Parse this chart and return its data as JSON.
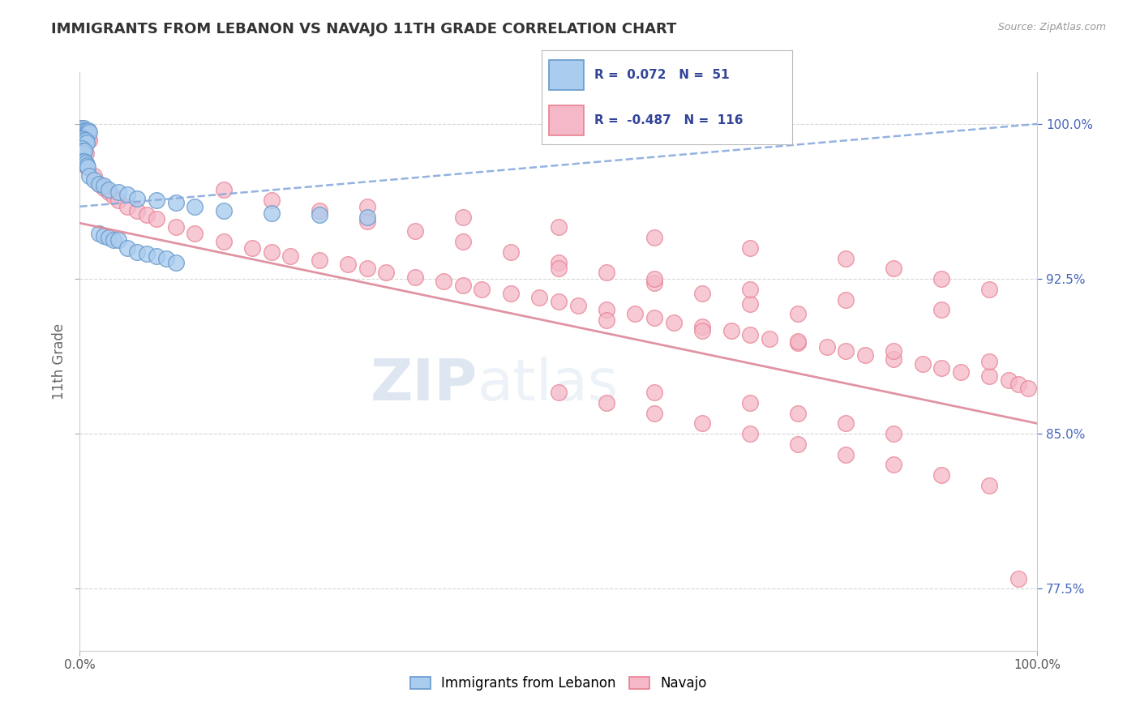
{
  "title": "IMMIGRANTS FROM LEBANON VS NAVAJO 11TH GRADE CORRELATION CHART",
  "source_text": "Source: ZipAtlas.com",
  "ylabel": "11th Grade",
  "watermark_zip": "ZIP",
  "watermark_atlas": "atlas",
  "xlim": [
    0.0,
    1.0
  ],
  "ylim": [
    0.745,
    1.025
  ],
  "x_tick_labels": [
    "0.0%",
    "100.0%"
  ],
  "x_tick_positions": [
    0.0,
    1.0
  ],
  "y_tick_labels": [
    "77.5%",
    "85.0%",
    "92.5%",
    "100.0%"
  ],
  "y_tick_positions": [
    0.775,
    0.85,
    0.925,
    1.0
  ],
  "legend_labels": [
    "Immigrants from Lebanon",
    "Navajo"
  ],
  "blue_R": 0.072,
  "blue_N": 51,
  "pink_R": -0.487,
  "pink_N": 116,
  "blue_color": "#aaccee",
  "pink_color": "#f4b8c8",
  "blue_edge": "#6699cc",
  "pink_edge": "#e88090",
  "trend_blue_color": "#88aadd",
  "trend_pink_color": "#dd8899",
  "background": "#ffffff",
  "grid_color": "#cccccc",
  "title_color": "#333333",
  "right_tick_color": "#4466bb",
  "blue_trend_start_y": 0.96,
  "blue_trend_end_y": 1.0,
  "pink_trend_start_y": 0.952,
  "pink_trend_end_y": 0.855,
  "blue_points_x": [
    0.002,
    0.003,
    0.004,
    0.005,
    0.006,
    0.007,
    0.008,
    0.009,
    0.01,
    0.002,
    0.003,
    0.004,
    0.005,
    0.006,
    0.007,
    0.002,
    0.003,
    0.004,
    0.005,
    0.003,
    0.004,
    0.005,
    0.006,
    0.007,
    0.008,
    0.01,
    0.015,
    0.02,
    0.025,
    0.03,
    0.04,
    0.05,
    0.06,
    0.08,
    0.1,
    0.12,
    0.15,
    0.2,
    0.25,
    0.3,
    0.02,
    0.025,
    0.03,
    0.035,
    0.04,
    0.05,
    0.06,
    0.07,
    0.08,
    0.09,
    0.1
  ],
  "blue_points_y": [
    0.998,
    0.997,
    0.998,
    0.997,
    0.997,
    0.996,
    0.996,
    0.997,
    0.996,
    0.993,
    0.993,
    0.992,
    0.991,
    0.992,
    0.991,
    0.988,
    0.987,
    0.986,
    0.987,
    0.982,
    0.981,
    0.982,
    0.981,
    0.98,
    0.979,
    0.975,
    0.973,
    0.971,
    0.97,
    0.968,
    0.967,
    0.966,
    0.964,
    0.963,
    0.962,
    0.96,
    0.958,
    0.957,
    0.956,
    0.955,
    0.947,
    0.946,
    0.945,
    0.944,
    0.944,
    0.94,
    0.938,
    0.937,
    0.936,
    0.935,
    0.933
  ],
  "pink_points_x": [
    0.002,
    0.003,
    0.004,
    0.005,
    0.006,
    0.007,
    0.008,
    0.009,
    0.01,
    0.002,
    0.003,
    0.004,
    0.005,
    0.006,
    0.003,
    0.004,
    0.005,
    0.006,
    0.007,
    0.015,
    0.02,
    0.025,
    0.03,
    0.035,
    0.04,
    0.05,
    0.06,
    0.07,
    0.08,
    0.1,
    0.12,
    0.15,
    0.18,
    0.2,
    0.22,
    0.25,
    0.28,
    0.3,
    0.32,
    0.35,
    0.38,
    0.4,
    0.42,
    0.45,
    0.48,
    0.5,
    0.52,
    0.55,
    0.58,
    0.6,
    0.62,
    0.65,
    0.68,
    0.7,
    0.72,
    0.75,
    0.78,
    0.8,
    0.82,
    0.85,
    0.88,
    0.9,
    0.92,
    0.95,
    0.97,
    0.98,
    0.99,
    0.15,
    0.2,
    0.25,
    0.3,
    0.4,
    0.5,
    0.6,
    0.7,
    0.35,
    0.45,
    0.55,
    0.65,
    0.75,
    0.5,
    0.6,
    0.7,
    0.8,
    0.9,
    0.55,
    0.65,
    0.75,
    0.85,
    0.95,
    0.3,
    0.4,
    0.5,
    0.6,
    0.7,
    0.8,
    0.85,
    0.9,
    0.95,
    0.6,
    0.7,
    0.75,
    0.8,
    0.85,
    0.5,
    0.55,
    0.6,
    0.65,
    0.7,
    0.75,
    0.8,
    0.85,
    0.9,
    0.95,
    0.98
  ],
  "pink_points_y": [
    0.998,
    0.997,
    0.996,
    0.995,
    0.996,
    0.995,
    0.994,
    0.993,
    0.992,
    0.99,
    0.989,
    0.988,
    0.987,
    0.986,
    0.983,
    0.982,
    0.981,
    0.98,
    0.979,
    0.975,
    0.971,
    0.969,
    0.967,
    0.965,
    0.963,
    0.96,
    0.958,
    0.956,
    0.954,
    0.95,
    0.947,
    0.943,
    0.94,
    0.938,
    0.936,
    0.934,
    0.932,
    0.93,
    0.928,
    0.926,
    0.924,
    0.922,
    0.92,
    0.918,
    0.916,
    0.914,
    0.912,
    0.91,
    0.908,
    0.906,
    0.904,
    0.902,
    0.9,
    0.898,
    0.896,
    0.894,
    0.892,
    0.89,
    0.888,
    0.886,
    0.884,
    0.882,
    0.88,
    0.878,
    0.876,
    0.874,
    0.872,
    0.968,
    0.963,
    0.958,
    0.953,
    0.943,
    0.933,
    0.923,
    0.913,
    0.948,
    0.938,
    0.928,
    0.918,
    0.908,
    0.93,
    0.925,
    0.92,
    0.915,
    0.91,
    0.905,
    0.9,
    0.895,
    0.89,
    0.885,
    0.96,
    0.955,
    0.95,
    0.945,
    0.94,
    0.935,
    0.93,
    0.925,
    0.92,
    0.87,
    0.865,
    0.86,
    0.855,
    0.85,
    0.87,
    0.865,
    0.86,
    0.855,
    0.85,
    0.845,
    0.84,
    0.835,
    0.83,
    0.825,
    0.78
  ]
}
